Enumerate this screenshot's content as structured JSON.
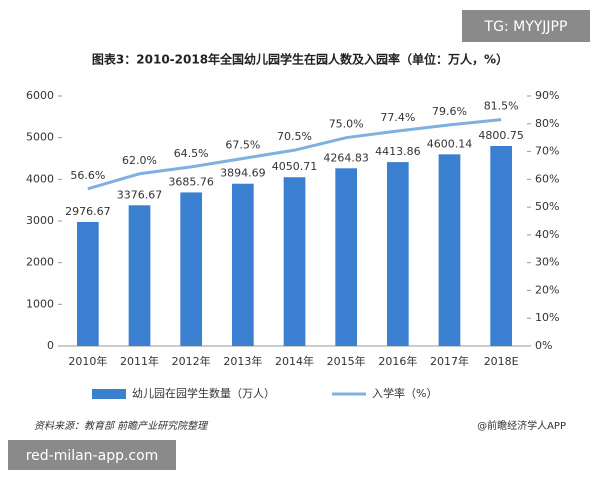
{
  "chart_data": {
    "type": "bar",
    "title": "图表3：2010-2018年全国幼儿园学生在园人数及入园率（单位：万人，%）",
    "categories": [
      "2010年",
      "2011年",
      "2012年",
      "2013年",
      "2014年",
      "2015年",
      "2016年",
      "2017年",
      "2018E"
    ],
    "series": [
      {
        "name": "幼儿园在园学生数量（万人）",
        "type": "bar",
        "color": "#3b80d0",
        "values": [
          2976.67,
          3376.67,
          3685.76,
          3894.69,
          4050.71,
          4264.83,
          4413.86,
          4600.14,
          4800.75
        ]
      },
      {
        "name": "入学率（%）",
        "type": "line",
        "axis": "y2",
        "color": "#7fb0e0",
        "values": [
          56.6,
          62.0,
          64.5,
          67.5,
          70.5,
          75.0,
          77.4,
          79.6,
          81.5
        ],
        "value_labels": [
          "56.6%",
          "62.0%",
          "64.5%",
          "67.5%",
          "70.5%",
          "75.0%",
          "77.4%",
          "79.6%",
          "81.5%"
        ]
      }
    ],
    "ylim": [
      0,
      6000
    ],
    "yticks": [
      0,
      1000,
      2000,
      3000,
      4000,
      5000,
      6000
    ],
    "y2lim": [
      0,
      90
    ],
    "y2ticks": [
      {
        "value": 0,
        "label": "0%"
      },
      {
        "value": 10,
        "label": "10%"
      },
      {
        "value": 20,
        "label": "20%"
      },
      {
        "value": 30,
        "label": "30%"
      },
      {
        "value": 40,
        "label": "40%"
      },
      {
        "value": 50,
        "label": "50%"
      },
      {
        "value": 60,
        "label": "60%"
      },
      {
        "value": 70,
        "label": "70%"
      },
      {
        "value": 80,
        "label": "80%"
      },
      {
        "value": 90,
        "label": "90%"
      }
    ],
    "grid": false,
    "legend": "bottom",
    "source": "资料来源：教育部 前瞻产业研究院整理",
    "credit": "@前瞻经济学人APP"
  },
  "watermarks": [
    "TG: MYYJJPP",
    "red-milan-app.com"
  ]
}
